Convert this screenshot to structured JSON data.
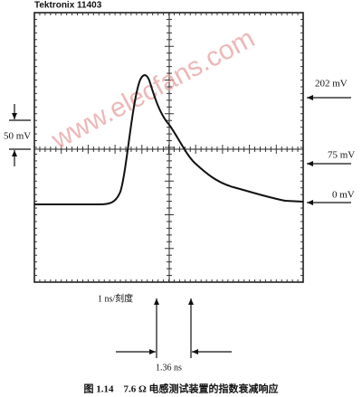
{
  "header": {
    "instrument": "Tektronix 11403"
  },
  "watermark": "www.elecfans.com",
  "annotations": {
    "level_202": "202 mV",
    "level_75": "75 mV",
    "level_0": "0 mV",
    "scale_v": "50 mV",
    "scale_t": "1 ns/刻度",
    "delta_t": "1.36 ns"
  },
  "caption": "图 1.14　7.6 Ω 电感测试装置的指数衰减响应"
}
